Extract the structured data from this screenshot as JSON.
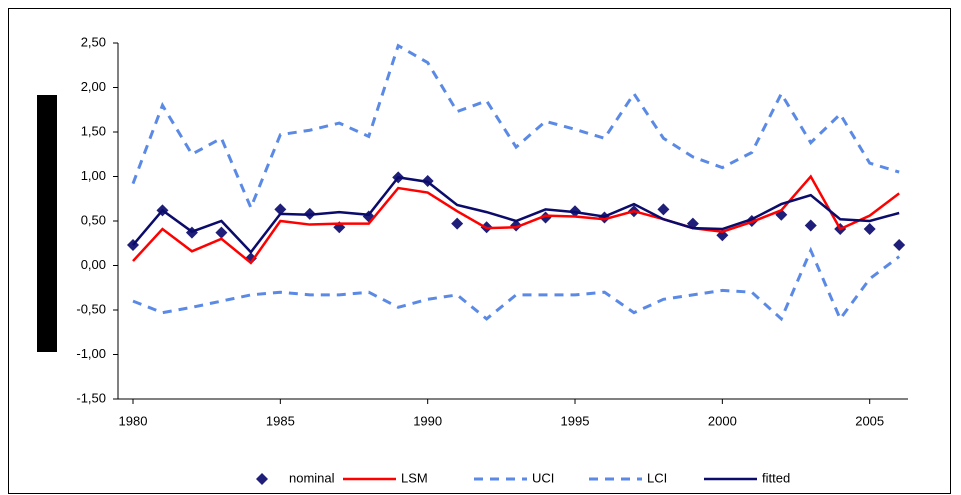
{
  "chart_data": {
    "type": "line",
    "x": [
      1980,
      1981,
      1982,
      1983,
      1984,
      1985,
      1986,
      1987,
      1988,
      1989,
      1990,
      1991,
      1992,
      1993,
      1994,
      1995,
      1996,
      1997,
      1998,
      1999,
      2000,
      2001,
      2002,
      2003,
      2004,
      2005,
      2006
    ],
    "xlim": [
      1980,
      2006.3
    ],
    "xticks": [
      1980,
      1985,
      1990,
      1995,
      2000,
      2005
    ],
    "ylim": [
      -1.5,
      2.5
    ],
    "yticks": [
      {
        "value": -1.5,
        "label": "-1,50"
      },
      {
        "value": -1.0,
        "label": "-1,00"
      },
      {
        "value": -0.5,
        "label": "-0,50"
      },
      {
        "value": 0,
        "label": "0,00"
      },
      {
        "value": 0.5,
        "label": "0,50"
      },
      {
        "value": 1.0,
        "label": "1,00"
      },
      {
        "value": 1.5,
        "label": "1,50"
      },
      {
        "value": 2.0,
        "label": "2,00"
      },
      {
        "value": 2.5,
        "label": "2,50"
      }
    ],
    "series": [
      {
        "name": "nominal",
        "color": "#1f1f7a",
        "marker": "diamond",
        "values": [
          0.23,
          0.62,
          0.37,
          0.37,
          0.08,
          0.63,
          0.58,
          0.43,
          0.55,
          0.99,
          0.95,
          0.47,
          0.43,
          0.45,
          0.54,
          0.61,
          0.54,
          0.61,
          0.63,
          0.47,
          0.34,
          0.5,
          0.57,
          0.45,
          0.41,
          0.41,
          0.23
        ]
      },
      {
        "name": "LSM",
        "color": "#ff0000",
        "values": [
          0.05,
          0.41,
          0.16,
          0.3,
          0.03,
          0.5,
          0.46,
          0.47,
          0.47,
          0.87,
          0.82,
          0.61,
          0.42,
          0.43,
          0.56,
          0.55,
          0.52,
          0.61,
          0.52,
          0.42,
          0.38,
          0.49,
          0.62,
          1.0,
          0.41,
          0.56,
          0.81
        ]
      },
      {
        "name": "UCI",
        "color": "#5b8ae6",
        "dashed": true,
        "values": [
          0.92,
          1.8,
          1.25,
          1.43,
          0.65,
          1.47,
          1.52,
          1.6,
          1.45,
          2.47,
          2.28,
          1.73,
          1.85,
          1.33,
          1.62,
          1.53,
          1.43,
          1.93,
          1.43,
          1.22,
          1.1,
          1.27,
          1.93,
          1.38,
          1.7,
          1.15,
          1.05
        ]
      },
      {
        "name": "LCI",
        "color": "#5b8ae6",
        "dashed": true,
        "values": [
          -0.4,
          -0.53,
          -0.47,
          -0.4,
          -0.33,
          -0.3,
          -0.33,
          -0.33,
          -0.3,
          -0.47,
          -0.38,
          -0.33,
          -0.6,
          -0.33,
          -0.33,
          -0.33,
          -0.3,
          -0.53,
          -0.38,
          -0.33,
          -0.28,
          -0.3,
          -0.6,
          0.17,
          -0.6,
          -0.15,
          0.1
        ]
      },
      {
        "name": "fitted",
        "color": "#0b0b6b",
        "values": [
          0.23,
          0.62,
          0.38,
          0.5,
          0.15,
          0.58,
          0.57,
          0.6,
          0.57,
          0.99,
          0.94,
          0.68,
          0.6,
          0.5,
          0.63,
          0.6,
          0.55,
          0.69,
          0.52,
          0.42,
          0.41,
          0.52,
          0.69,
          0.79,
          0.52,
          0.5,
          0.59
        ]
      }
    ]
  }
}
